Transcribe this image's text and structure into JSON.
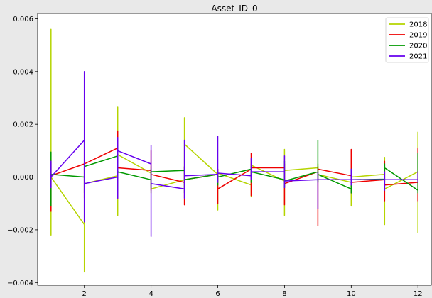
{
  "chart_data": {
    "type": "line",
    "title": "Asset_ID_0",
    "xlabel": "",
    "ylabel": "",
    "xlim": [
      0.6,
      12.4
    ],
    "ylim": [
      -0.0041,
      0.0062
    ],
    "xticks": [
      2,
      4,
      6,
      8,
      10,
      12
    ],
    "xtick_labels": [
      "2",
      "4",
      "6",
      "8",
      "10",
      "12"
    ],
    "yticks": [
      -0.004,
      -0.002,
      0.0,
      0.002,
      0.004,
      0.006
    ],
    "ytick_labels": [
      "−0.004",
      "−0.002",
      "0.000",
      "0.002",
      "0.004",
      "0.006"
    ],
    "grid": false,
    "legend_position": "top-right",
    "note": "Each month is drawn as a connected path running from its first to its last value with a vertical segment spanning the month's range.",
    "series": [
      {
        "name": "2018",
        "color": "#b5d400",
        "segments": [
          {
            "x": 1,
            "values": [
              0.0,
              0.0056,
              -0.0022,
              0.0
            ]
          },
          {
            "x": 2,
            "values": [
              -0.0018,
              0.0,
              -0.0036,
              -0.00025
            ]
          },
          {
            "x": 3,
            "values": [
              5e-05,
              0.00265,
              -0.00145,
              0.00085
            ]
          },
          {
            "x": 4,
            "values": [
              0.00015,
              0.0004,
              -0.0006,
              -0.00045
            ]
          },
          {
            "x": 5,
            "values": [
              -0.0001,
              0.00225,
              -0.0004,
              0.00125
            ]
          },
          {
            "x": 6,
            "values": [
              0.0001,
              0.0003,
              -0.00125,
              0.00015
            ]
          },
          {
            "x": 7,
            "values": [
              -0.0003,
              0.0005,
              -0.00075,
              0.00045
            ]
          },
          {
            "x": 8,
            "values": [
              -0.00015,
              0.00105,
              -0.00145,
              0.00025
            ]
          },
          {
            "x": 9,
            "values": [
              0.00035,
              0.0005,
              -0.0002,
              0.0001
            ]
          },
          {
            "x": 10,
            "values": [
              -0.0002,
              0.0002,
              -0.0011,
              0.0
            ]
          },
          {
            "x": 11,
            "values": [
              0.0001,
              0.00075,
              -0.0018,
              -0.00045
            ]
          },
          {
            "x": 12,
            "values": [
              0.0002,
              0.0017,
              -0.0021,
              0.0004
            ]
          }
        ]
      },
      {
        "name": "2019",
        "color": "#ee0000",
        "segments": [
          {
            "x": 1,
            "values": [
              0.0001,
              0.00065,
              -0.0013,
              5e-05
            ]
          },
          {
            "x": 2,
            "values": [
              0.0005,
              0.0013,
              -0.0008,
              0.0005
            ]
          },
          {
            "x": 3,
            "values": [
              0.0011,
              0.00175,
              -0.0008,
              0.00035
            ]
          },
          {
            "x": 4,
            "values": [
              0.00025,
              0.001,
              -0.0005,
              0.0001
            ]
          },
          {
            "x": 5,
            "values": [
              -0.0002,
              0.0004,
              -0.00105,
              -0.0001
            ]
          },
          {
            "x": 6,
            "values": [
              0.0001,
              0.0003,
              -0.001,
              -0.00045
            ]
          },
          {
            "x": 7,
            "values": [
              0.0003,
              0.0009,
              -0.0007,
              0.00035
            ]
          },
          {
            "x": 8,
            "values": [
              0.00035,
              0.0005,
              -0.00105,
              -0.00025
            ]
          },
          {
            "x": 9,
            "values": [
              0.0002,
              0.0004,
              -0.00185,
              0.0003
            ]
          },
          {
            "x": 10,
            "values": [
              5e-05,
              0.00105,
              -0.0006,
              -0.0002
            ]
          },
          {
            "x": 11,
            "values": [
              -0.0001,
              0.0006,
              -0.0009,
              -0.0003
            ]
          },
          {
            "x": 12,
            "values": [
              -0.0002,
              0.00108,
              -0.0009,
              -0.00015
            ]
          }
        ]
      },
      {
        "name": "2020",
        "color": "#009900",
        "segments": [
          {
            "x": 1,
            "values": [
              0.0001,
              0.00095,
              -0.0011,
              0.0001
            ]
          },
          {
            "x": 2,
            "values": [
              0.0,
              0.0002,
              -0.0006,
              0.0004
            ]
          },
          {
            "x": 3,
            "values": [
              0.0008,
              0.0012,
              -0.0005,
              0.0002
            ]
          },
          {
            "x": 4,
            "values": [
              -0.0001,
              0.0003,
              -0.0004,
              0.0002
            ]
          },
          {
            "x": 5,
            "values": [
              0.00025,
              0.0004,
              -0.0006,
              -0.0001
            ]
          },
          {
            "x": 6,
            "values": [
              0.0001,
              0.0002,
              -0.0003,
              0.0
            ]
          },
          {
            "x": 7,
            "values": [
              0.0003,
              0.0004,
              -0.0002,
              0.0002
            ]
          },
          {
            "x": 8,
            "values": [
              -0.0001,
              0.0006,
              -0.0004,
              -0.00015
            ]
          },
          {
            "x": 9,
            "values": [
              0.0002,
              0.0014,
              -0.0002,
              0.0001
            ]
          },
          {
            "x": 10,
            "values": [
              -0.00045,
              0.0003,
              -0.0006,
              -0.0001
            ]
          },
          {
            "x": 11,
            "values": [
              -8e-05,
              0.0005,
              -0.0002,
              0.00035
            ]
          },
          {
            "x": 12,
            "values": [
              -0.0005,
              0.0009,
              -0.0006,
              -0.0005
            ]
          }
        ]
      },
      {
        "name": "2021",
        "color": "#6600ee",
        "segments": [
          {
            "x": 1,
            "values": [
              -0.0002,
              0.0006,
              -0.0004,
              0.0
            ]
          },
          {
            "x": 2,
            "values": [
              0.0014,
              0.004,
              -0.0017,
              -0.00025
            ]
          },
          {
            "x": 3,
            "values": [
              0.0,
              0.0015,
              -0.0008,
              0.001
            ]
          },
          {
            "x": 4,
            "values": [
              0.0005,
              0.0012,
              -0.00225,
              -0.00025
            ]
          },
          {
            "x": 5,
            "values": [
              -0.00045,
              0.0014,
              -0.0008,
              5e-05
            ]
          },
          {
            "x": 6,
            "values": [
              0.0001,
              0.00155,
              -0.0002,
              0.00015
            ]
          },
          {
            "x": 7,
            "values": [
              5e-05,
              0.0007,
              -0.0001,
              0.0002
            ]
          },
          {
            "x": 8,
            "values": [
              0.0002,
              0.0008,
              -0.0004,
              -0.00015
            ]
          },
          {
            "x": 9,
            "values": [
              -0.0001,
              0.0002,
              -0.0012,
              -0.0001
            ]
          },
          {
            "x": 10,
            "values": [
              -0.0001,
              0.0003,
              -0.0003,
              -0.0001
            ]
          },
          {
            "x": 11,
            "values": [
              -0.0001,
              0.0002,
              -0.0005,
              -0.0001
            ]
          },
          {
            "x": 12,
            "values": [
              -0.0001,
              0.0002,
              -0.0002,
              -0.0001
            ]
          }
        ]
      }
    ]
  }
}
